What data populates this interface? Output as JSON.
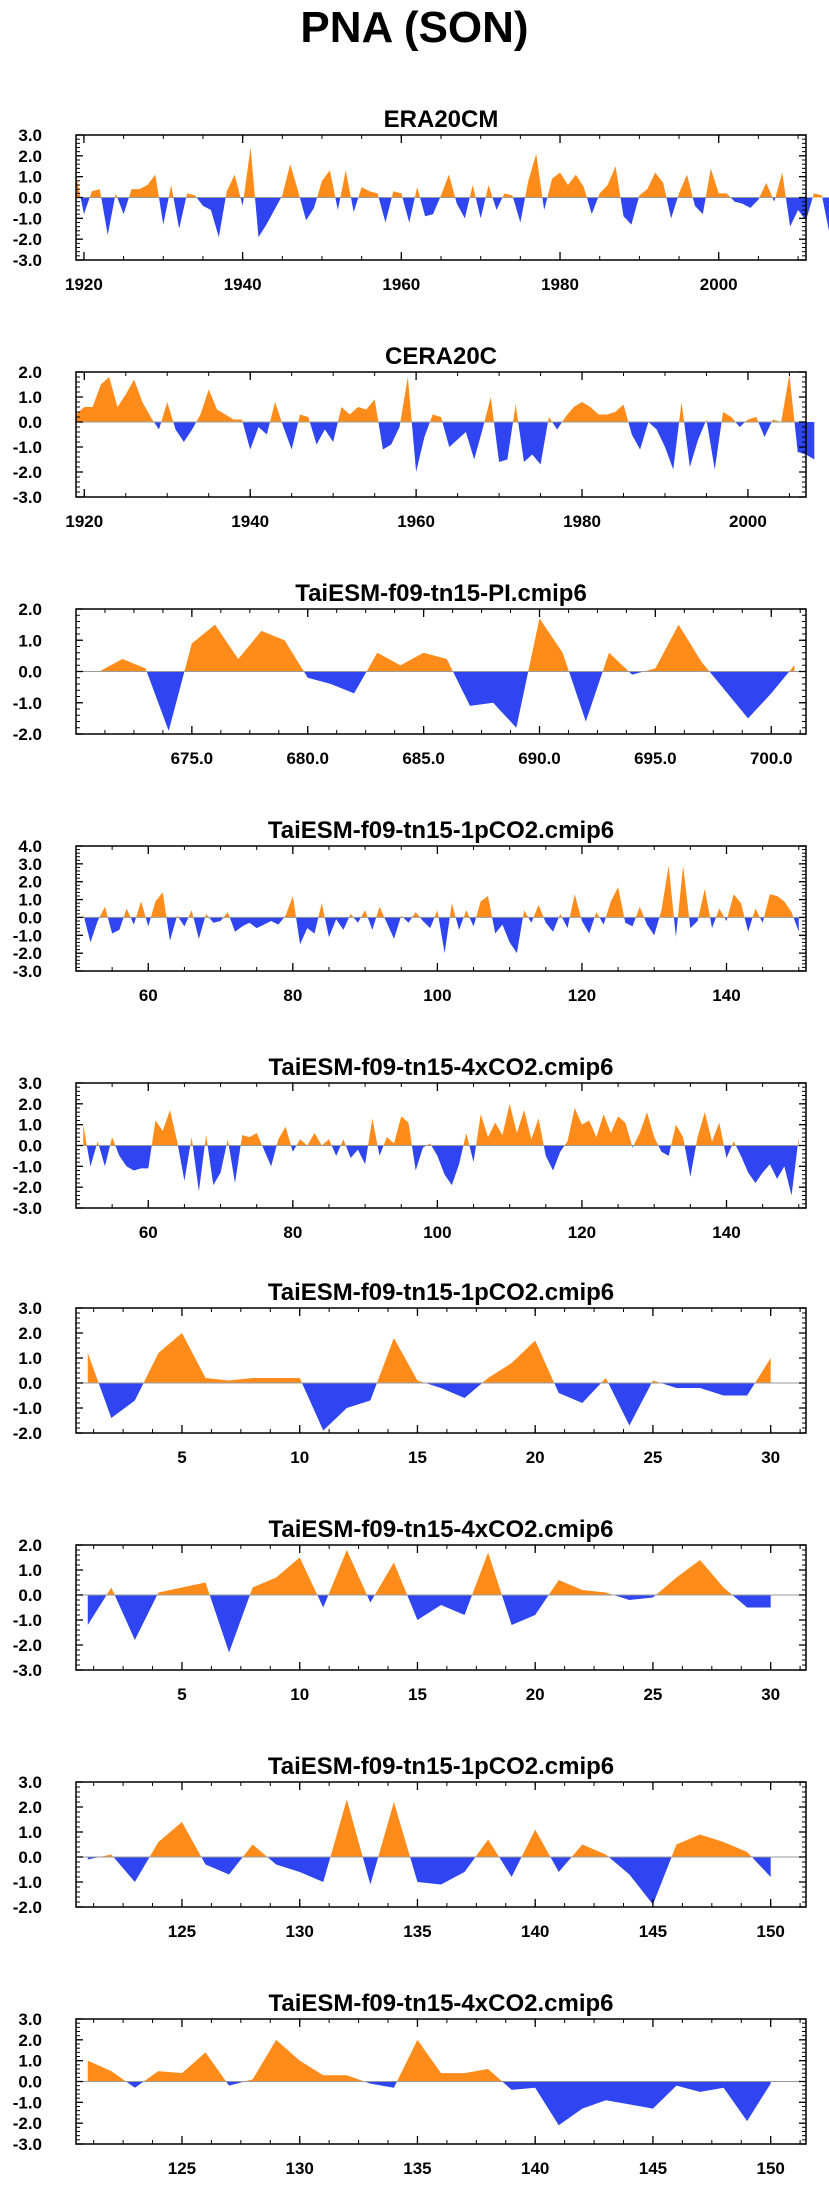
{
  "figure": {
    "title": "PNA (SON)"
  },
  "colors": {
    "positive": "#ff8c1a",
    "negative": "#2f45f2",
    "axis": "#000000"
  },
  "chart_data": [
    {
      "type": "area",
      "title": "ERA20CM",
      "xlim": [
        1919,
        2011
      ],
      "ylim": [
        -3,
        3
      ],
      "yticks": [
        "3.0",
        "2.0",
        "1.0",
        "0.0",
        "-1.0",
        "-2.0",
        "-3.0"
      ],
      "xticks": [
        "1920",
        "1940",
        "1960",
        "1980",
        "2000"
      ],
      "x_start": 1919,
      "x_step": 1,
      "values": [
        1.1,
        -0.8,
        0.3,
        0.4,
        -1.8,
        0.2,
        -0.8,
        0.4,
        0.4,
        0.6,
        1.1,
        -1.3,
        0.6,
        -1.5,
        0.2,
        0.1,
        -0.4,
        -0.6,
        -1.9,
        0.3,
        1.1,
        -0.4,
        2.4,
        -1.9,
        -1.3,
        -0.6,
        0.1,
        1.6,
        0.3,
        -1.1,
        -0.5,
        0.8,
        1.3,
        -0.6,
        1.3,
        -0.7,
        0.5,
        0.3,
        0.2,
        -1.2,
        0.3,
        0.2,
        -1.2,
        0.5,
        -0.9,
        -0.8,
        0.1,
        1.1,
        -0.3,
        -1.0,
        0.6,
        -1.0,
        0.6,
        -0.6,
        0.2,
        0.1,
        -1.2,
        0.8,
        2.1,
        -0.6,
        0.9,
        1.2,
        0.6,
        1.1,
        0.5,
        -0.8,
        0.2,
        0.6,
        1.5,
        -0.9,
        -1.3,
        0.1,
        0.4,
        1.2,
        0.7,
        -1.0,
        0.2,
        1.1,
        -0.4,
        -0.8,
        1.4,
        0.2,
        0.2,
        -0.2,
        -0.3,
        -0.5,
        -0.1,
        0.7,
        -0.2,
        1.2,
        -1.4,
        -0.6,
        -1.1,
        0.2,
        0.1,
        -1.8
      ]
    },
    {
      "type": "area",
      "title": "CERA20C",
      "xlim": [
        1919,
        2007
      ],
      "ylim": [
        -3,
        2
      ],
      "yticks": [
        "2.0",
        "1.0",
        "0.0",
        "-1.0",
        "-2.0",
        "-3.0"
      ],
      "xticks": [
        "1920",
        "1940",
        "1960",
        "1980",
        "2000"
      ],
      "x_start": 1919,
      "x_step": 1,
      "values": [
        0.3,
        0.6,
        0.6,
        1.5,
        1.8,
        0.6,
        1.1,
        1.7,
        0.8,
        0.2,
        -0.3,
        0.8,
        -0.3,
        -0.8,
        -0.3,
        0.3,
        1.3,
        0.5,
        0.3,
        0.1,
        0.1,
        -1.1,
        -0.2,
        -0.5,
        0.8,
        -0.2,
        -1.1,
        0.3,
        0.2,
        -0.9,
        -0.3,
        -0.8,
        0.6,
        0.3,
        0.6,
        0.5,
        0.9,
        -1.1,
        -0.9,
        -0.2,
        1.8,
        -2.0,
        -0.6,
        0.3,
        0.2,
        -1.0,
        -0.7,
        -0.4,
        -1.5,
        -0.3,
        1.0,
        -1.6,
        -1.5,
        0.7,
        -1.6,
        -1.3,
        -1.7,
        0.2,
        -0.3,
        0.2,
        0.6,
        0.8,
        0.6,
        0.3,
        0.3,
        0.4,
        0.7,
        -0.5,
        -1.1,
        0.0,
        -0.3,
        -1.0,
        -1.9,
        0.8,
        -1.8,
        -0.7,
        0.1,
        -1.9,
        0.4,
        0.2,
        -0.2,
        0.1,
        0.2,
        -0.6,
        0.1,
        0.0,
        1.9,
        -1.2,
        -1.3,
        -1.5
      ]
    },
    {
      "type": "area",
      "title": "TaiESM-f09-tn15-PI.cmip6",
      "xlim": [
        670,
        701.5
      ],
      "ylim": [
        -2,
        2
      ],
      "yticks": [
        "2.0",
        "1.0",
        "0.0",
        "-1.0",
        "-2.0"
      ],
      "xticks": [
        "675.0",
        "680.0",
        "685.0",
        "690.0",
        "695.0",
        "700.0"
      ],
      "x_start": 671,
      "x_step": 1,
      "values": [
        0.0,
        0.4,
        0.1,
        -1.9,
        0.9,
        1.5,
        0.4,
        1.3,
        1.0,
        -0.2,
        -0.4,
        -0.7,
        0.6,
        0.2,
        0.6,
        0.4,
        -1.1,
        -1.0,
        -1.8,
        1.7,
        0.6,
        -1.6,
        0.6,
        -0.1,
        0.1,
        1.5,
        0.3,
        -0.6,
        -1.5,
        -0.7,
        0.2
      ]
    },
    {
      "type": "area",
      "title": "TaiESM-f09-tn15-1pCO2.cmip6",
      "xlim": [
        50,
        151
      ],
      "ylim": [
        -3,
        4
      ],
      "yticks": [
        "4.0",
        "3.0",
        "2.0",
        "1.0",
        "0.0",
        "-1.0",
        "-2.0",
        "-3.0"
      ],
      "xticks": [
        "60",
        "80",
        "100",
        "120",
        "140"
      ],
      "x_start": 51,
      "x_step": 1,
      "values": [
        0.2,
        -1.4,
        -0.2,
        0.6,
        -0.9,
        -0.7,
        0.5,
        -0.4,
        0.9,
        -0.5,
        0.9,
        1.4,
        -1.3,
        0.1,
        -0.5,
        0.4,
        -1.2,
        0.2,
        -0.3,
        -0.2,
        0.3,
        -0.8,
        -0.5,
        -0.3,
        -0.6,
        -0.4,
        -0.2,
        -0.4,
        0.1,
        1.2,
        -1.5,
        -0.6,
        -0.9,
        0.8,
        -1.1,
        -0.1,
        -0.7,
        0.2,
        -0.3,
        0.4,
        -0.7,
        0.6,
        -0.3,
        -1.2,
        0.1,
        -0.3,
        0.3,
        -0.2,
        -0.6,
        0.4,
        -2.0,
        0.8,
        -0.7,
        0.4,
        -0.5,
        0.9,
        1.2,
        -0.9,
        -0.4,
        -1.4,
        -2.0,
        0.4,
        -0.3,
        0.7,
        -0.3,
        -0.8,
        0.2,
        -0.6,
        1.3,
        -0.2,
        -0.9,
        0.3,
        -0.4,
        0.9,
        1.7,
        -0.3,
        -0.5,
        0.6,
        -0.4,
        -1.0,
        0.4,
        2.9,
        -1.1,
        2.9,
        -0.6,
        -0.2,
        1.6,
        -0.6,
        0.5,
        -0.2,
        1.3,
        0.8,
        -0.8,
        0.5,
        -0.3,
        1.3,
        1.2,
        0.9,
        0.3,
        -0.8
      ]
    },
    {
      "type": "area",
      "title": "TaiESM-f09-tn15-4xCO2.cmip6",
      "xlim": [
        50,
        151
      ],
      "ylim": [
        -3,
        3
      ],
      "yticks": [
        "3.0",
        "2.0",
        "1.0",
        "0.0",
        "-1.0",
        "-2.0",
        "-3.0"
      ],
      "xticks": [
        "60",
        "80",
        "100",
        "120",
        "140"
      ],
      "x_start": 51,
      "x_step": 1,
      "values": [
        1.0,
        -1.0,
        0.2,
        -1.0,
        0.4,
        -0.5,
        -1.0,
        -1.2,
        -1.1,
        -1.1,
        1.2,
        0.7,
        1.7,
        0.2,
        -1.7,
        0.4,
        -2.2,
        0.5,
        -1.9,
        -1.3,
        0.3,
        -1.8,
        0.5,
        0.4,
        0.6,
        -0.2,
        -1.0,
        0.3,
        0.9,
        -0.3,
        0.3,
        0.0,
        0.6,
        0.0,
        0.3,
        -0.5,
        0.3,
        -0.6,
        -0.2,
        -0.9,
        1.3,
        -0.5,
        0.4,
        0.1,
        1.4,
        1.1,
        -1.2,
        -0.1,
        0.1,
        -0.5,
        -1.4,
        -1.9,
        -0.9,
        0.6,
        -0.8,
        1.5,
        0.4,
        1.1,
        0.5,
        2.0,
        0.6,
        1.7,
        0.3,
        1.3,
        -0.5,
        -1.2,
        -0.3,
        0.2,
        1.8,
        1.0,
        1.2,
        0.4,
        1.5,
        0.6,
        1.4,
        1.1,
        -0.1,
        0.6,
        1.6,
        0.4,
        -0.3,
        -0.5,
        1.0,
        0.4,
        -1.5,
        0.4,
        1.6,
        0.2,
        1.1,
        -0.6,
        0.2,
        -0.5,
        -1.3,
        -1.8,
        -1.3,
        -0.9,
        -1.6,
        -1.0,
        -2.4,
        0.4
      ]
    },
    {
      "type": "area",
      "title": "TaiESM-f09-tn15-1pCO2.cmip6",
      "xlim": [
        0.5,
        31.5
      ],
      "ylim": [
        -2,
        3
      ],
      "yticks": [
        "3.0",
        "2.0",
        "1.0",
        "0.0",
        "-1.0",
        "-2.0"
      ],
      "xticks": [
        "5",
        "10",
        "15",
        "20",
        "25",
        "30"
      ],
      "x_start": 1,
      "x_step": 1,
      "values": [
        1.2,
        -1.4,
        -0.7,
        1.2,
        2.0,
        0.2,
        0.1,
        0.2,
        0.2,
        0.2,
        -1.9,
        -1.0,
        -0.7,
        1.8,
        0.1,
        -0.2,
        -0.6,
        0.2,
        0.8,
        1.7,
        -0.4,
        -0.8,
        0.2,
        -1.7,
        0.1,
        -0.2,
        -0.2,
        -0.5,
        -0.5,
        1.0
      ]
    },
    {
      "type": "area",
      "title": "TaiESM-f09-tn15-4xCO2.cmip6",
      "xlim": [
        0.5,
        31.5
      ],
      "ylim": [
        -3,
        2
      ],
      "yticks": [
        "2.0",
        "1.0",
        "0.0",
        "-1.0",
        "-2.0",
        "-3.0"
      ],
      "xticks": [
        "5",
        "10",
        "15",
        "20",
        "25",
        "30"
      ],
      "x_start": 1,
      "x_step": 1,
      "values": [
        -1.2,
        0.3,
        -1.8,
        0.1,
        0.3,
        0.5,
        -2.3,
        0.3,
        0.7,
        1.5,
        -0.5,
        1.8,
        -0.3,
        1.3,
        -1.0,
        -0.4,
        -0.8,
        1.7,
        -1.2,
        -0.8,
        0.6,
        0.2,
        0.1,
        -0.2,
        -0.1,
        0.7,
        1.4,
        0.3,
        -0.5,
        -0.5
      ]
    },
    {
      "type": "area",
      "title": "TaiESM-f09-tn15-1pCO2.cmip6",
      "xlim": [
        120.5,
        151.5
      ],
      "ylim": [
        -2,
        3
      ],
      "yticks": [
        "3.0",
        "2.0",
        "1.0",
        "0.0",
        "-1.0",
        "-2.0"
      ],
      "xticks": [
        "125",
        "130",
        "135",
        "140",
        "145",
        "150"
      ],
      "x_start": 121,
      "x_step": 1,
      "values": [
        -0.1,
        0.1,
        -1.0,
        0.6,
        1.4,
        -0.3,
        -0.7,
        0.5,
        -0.3,
        -0.6,
        -1.0,
        2.3,
        -1.1,
        2.2,
        -1.0,
        -1.1,
        -0.6,
        0.7,
        -0.8,
        1.1,
        -0.6,
        0.5,
        0.1,
        -0.7,
        -1.9,
        0.5,
        0.9,
        0.6,
        0.2,
        -0.8
      ]
    },
    {
      "type": "area",
      "title": "TaiESM-f09-tn15-4xCO2.cmip6",
      "xlim": [
        120.5,
        151.5
      ],
      "ylim": [
        -3,
        3
      ],
      "yticks": [
        "3.0",
        "2.0",
        "1.0",
        "0.0",
        "-1.0",
        "-2.0",
        "-3.0"
      ],
      "xticks": [
        "125",
        "130",
        "135",
        "140",
        "145",
        "150"
      ],
      "x_start": 121,
      "x_step": 1,
      "values": [
        1.0,
        0.5,
        -0.3,
        0.5,
        0.4,
        1.4,
        -0.2,
        0.1,
        2.0,
        1.0,
        0.3,
        0.3,
        -0.1,
        -0.3,
        2.0,
        0.4,
        0.4,
        0.6,
        -0.4,
        -0.3,
        -2.1,
        -1.3,
        -0.9,
        -1.1,
        -1.3,
        -0.2,
        -0.5,
        -0.3,
        -1.9,
        -0.1
      ]
    }
  ]
}
